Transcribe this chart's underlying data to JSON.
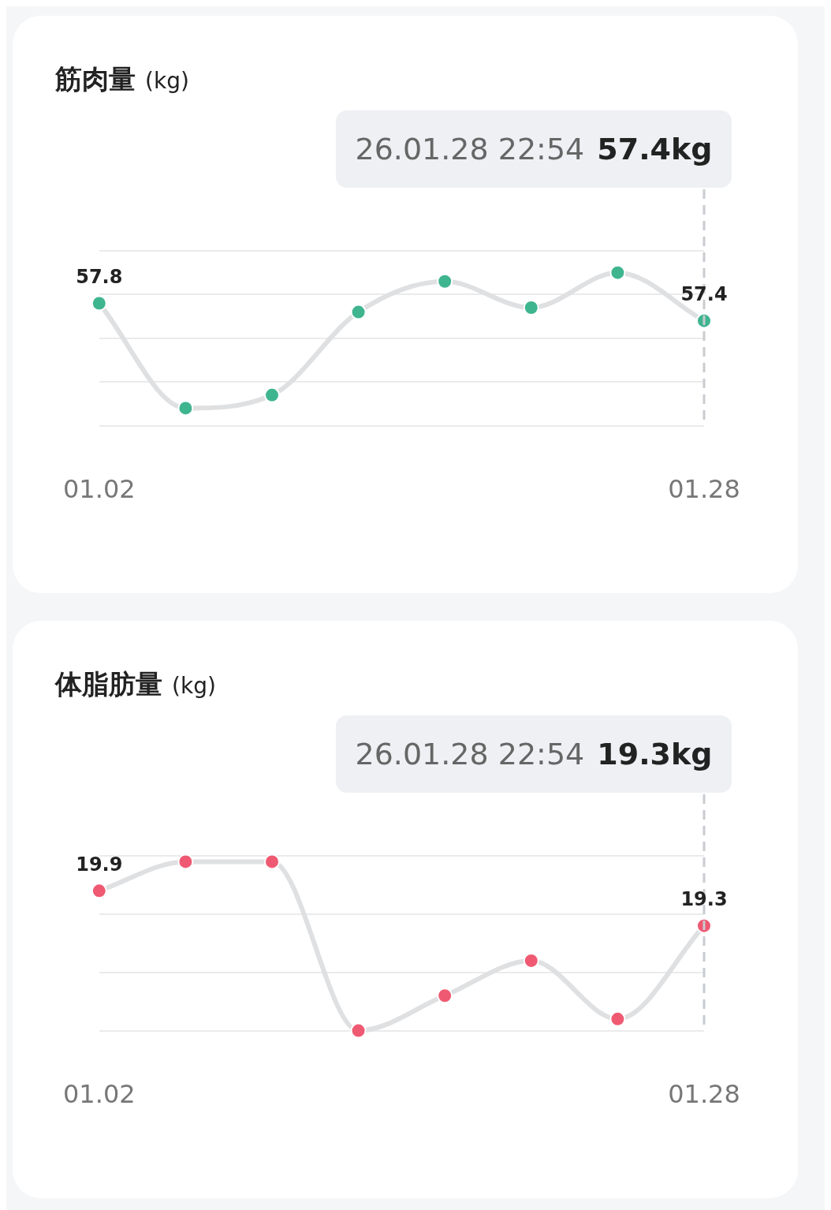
{
  "chart_data": [
    {
      "type": "line",
      "title": "筋肉量",
      "subtitle": "(kg)",
      "categories": [
        "01.02",
        null,
        null,
        null,
        null,
        null,
        null,
        "01.28"
      ],
      "series": [
        {
          "color": "#3fb58f",
          "values": [
            57.8,
            55.4,
            55.7,
            57.6,
            58.3,
            57.7,
            58.5,
            57.4
          ],
          "value_labels": [
            "57.8",
            null,
            null,
            null,
            null,
            null,
            null,
            "57.4"
          ]
        }
      ],
      "ylim": [
        55,
        59
      ],
      "yticks": [
        {
          "value": 55,
          "label": null
        },
        {
          "value": 56,
          "label": null
        },
        {
          "value": 57,
          "label": null
        },
        {
          "value": 58,
          "label": null
        },
        {
          "value": 59,
          "label": null
        }
      ],
      "grid": "y",
      "tick_labels": "x",
      "marker": "circle",
      "annotations": [
        "26.01.28 22:54",
        "57.4kg"
      ],
      "ref_lines": [
        {
          "axis": "x",
          "value": "01.28",
          "color": "#c8cbd0",
          "line_style": "dashed"
        }
      ]
    },
    {
      "type": "line",
      "title": "体脂肪量",
      "subtitle": "(kg)",
      "categories": [
        "01.02",
        null,
        null,
        null,
        null,
        null,
        null,
        "01.28"
      ],
      "series": [
        {
          "color": "#ef5a72",
          "values": [
            19.9,
            20.4,
            20.4,
            17.5,
            18.1,
            18.7,
            17.7,
            19.3
          ],
          "value_labels": [
            "19.9",
            null,
            null,
            null,
            null,
            null,
            null,
            "19.3"
          ]
        }
      ],
      "ylim": [
        17.5,
        20.5
      ],
      "yticks": [
        {
          "value": 17.5,
          "label": null
        },
        {
          "value": 18.5,
          "label": null
        },
        {
          "value": 19.5,
          "label": null
        },
        {
          "value": 20.5,
          "label": null
        }
      ],
      "grid": "y",
      "tick_labels": "x",
      "marker": "circle",
      "annotations": [
        "26.01.28 22:54",
        "19.3kg"
      ],
      "ref_lines": [
        {
          "axis": "x",
          "value": "01.28",
          "color": "#c8cbd0",
          "line_style": "dashed"
        }
      ]
    }
  ]
}
